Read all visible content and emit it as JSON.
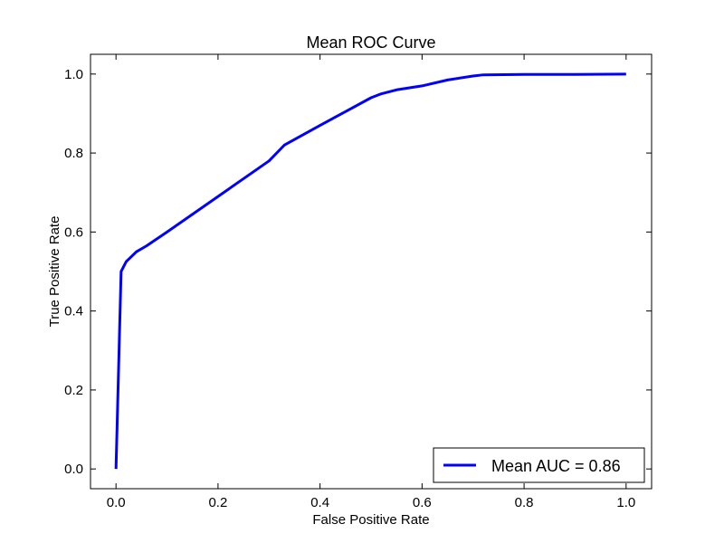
{
  "chart_data": {
    "type": "line",
    "title": "Mean ROC Curve",
    "xlabel": "False Positive Rate",
    "ylabel": "True Positive Rate",
    "xlim": [
      -0.05,
      1.05
    ],
    "ylim": [
      -0.05,
      1.05
    ],
    "x_ticks": [
      "0.0",
      "0.2",
      "0.4",
      "0.6",
      "0.8",
      "1.0"
    ],
    "y_ticks": [
      "0.0",
      "0.2",
      "0.4",
      "0.6",
      "0.8",
      "1.0"
    ],
    "grid": false,
    "legend_position": "bottom-right",
    "series": [
      {
        "name": "Mean AUC = 0.86",
        "color": "#0000ff",
        "x": [
          0.0,
          0.01,
          0.02,
          0.04,
          0.06,
          0.1,
          0.15,
          0.2,
          0.25,
          0.3,
          0.33,
          0.4,
          0.45,
          0.5,
          0.52,
          0.55,
          0.6,
          0.65,
          0.7,
          0.72,
          0.8,
          0.9,
          1.0
        ],
        "y": [
          0.0,
          0.5,
          0.525,
          0.55,
          0.565,
          0.6,
          0.645,
          0.69,
          0.735,
          0.78,
          0.82,
          0.87,
          0.905,
          0.94,
          0.95,
          0.96,
          0.97,
          0.985,
          0.995,
          0.998,
          0.999,
          0.999,
          1.0
        ]
      }
    ]
  }
}
